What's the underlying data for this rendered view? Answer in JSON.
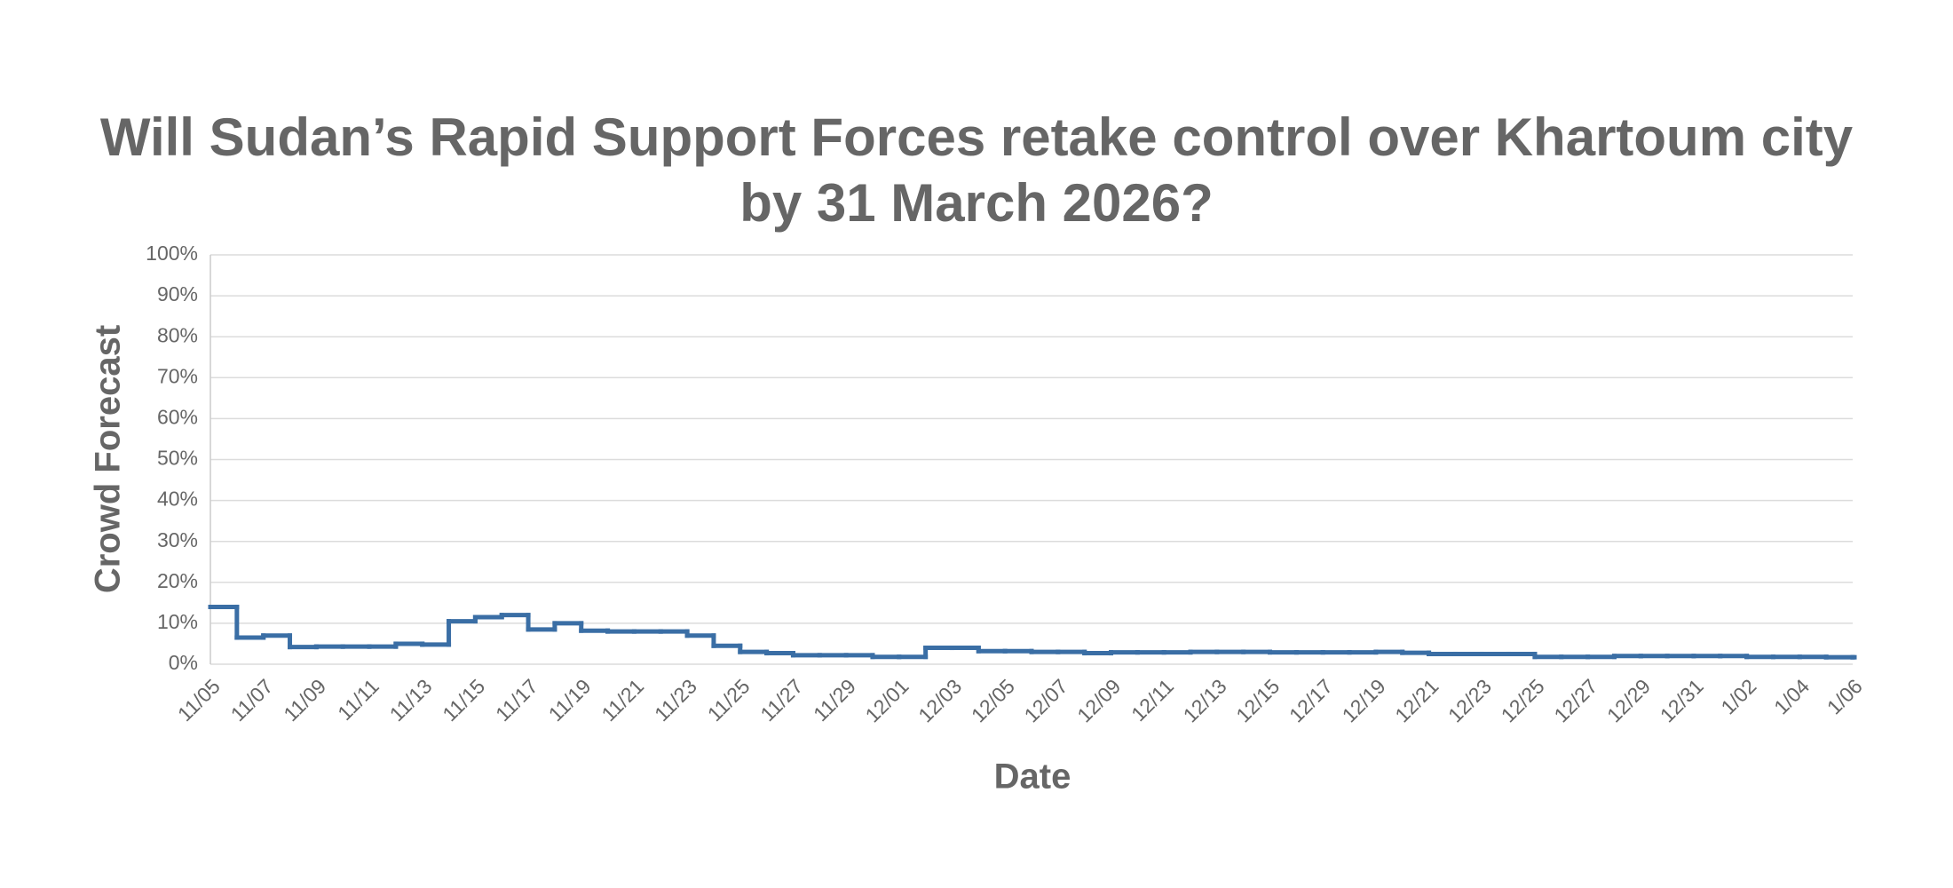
{
  "chart_data": {
    "type": "step-line",
    "title": "Will Sudan’s Rapid Support Forces retake control over Khartoum city by 31 March 2026?",
    "xlabel": "Date",
    "ylabel": "Crowd Forecast",
    "x": [
      "11/05",
      "11/06",
      "11/07",
      "11/08",
      "11/09",
      "11/10",
      "11/11",
      "11/12",
      "11/13",
      "11/14",
      "11/15",
      "11/16",
      "11/17",
      "11/18",
      "11/19",
      "11/20",
      "11/21",
      "11/22",
      "11/23",
      "11/24",
      "11/25",
      "11/26",
      "11/27",
      "11/28",
      "11/29",
      "11/30",
      "12/01",
      "12/02",
      "12/03",
      "12/04",
      "12/05",
      "12/06",
      "12/07",
      "12/08",
      "12/09",
      "12/10",
      "12/11",
      "12/12",
      "12/13",
      "12/14",
      "12/15",
      "12/16",
      "12/17",
      "12/18",
      "12/19",
      "12/20",
      "12/21",
      "12/22",
      "12/23",
      "12/24",
      "12/25",
      "12/26",
      "12/27",
      "12/28",
      "12/29",
      "12/30",
      "12/31",
      "1/01",
      "1/02",
      "1/03",
      "1/04",
      "1/05",
      "1/06"
    ],
    "xticks": [
      "11/05",
      "11/07",
      "11/09",
      "11/11",
      "11/13",
      "11/15",
      "11/17",
      "11/19",
      "11/21",
      "11/23",
      "11/25",
      "11/27",
      "11/29",
      "12/01",
      "12/03",
      "12/05",
      "12/07",
      "12/09",
      "12/11",
      "12/13",
      "12/15",
      "12/17",
      "12/19",
      "12/21",
      "12/23",
      "12/25",
      "12/27",
      "12/29",
      "12/31",
      "1/02",
      "1/04",
      "1/06"
    ],
    "series": [
      {
        "name": "Crowd Forecast",
        "color": "#3a6ea5",
        "values": [
          14,
          6.5,
          7,
          4.2,
          4.3,
          4.3,
          4.3,
          5,
          4.8,
          10.5,
          11.5,
          12,
          8.5,
          10,
          8.2,
          8,
          8,
          8,
          7,
          4.5,
          3,
          2.7,
          2.2,
          2.2,
          2.2,
          1.8,
          1.8,
          4,
          4,
          3.2,
          3.2,
          3,
          3,
          2.7,
          2.9,
          2.9,
          2.9,
          3,
          3,
          3,
          2.9,
          2.9,
          2.9,
          2.9,
          3,
          2.8,
          2.5,
          2.5,
          2.5,
          2.5,
          1.8,
          1.8,
          1.8,
          2,
          2,
          2,
          2,
          2,
          1.8,
          1.8,
          1.8,
          1.7,
          1.7
        ]
      }
    ],
    "ylim": [
      0,
      100
    ],
    "yticks": [
      {
        "value": 0,
        "label": "0%"
      },
      {
        "value": 10,
        "label": "10%"
      },
      {
        "value": 20,
        "label": "20%"
      },
      {
        "value": 30,
        "label": "30%"
      },
      {
        "value": 40,
        "label": "40%"
      },
      {
        "value": 50,
        "label": "50%"
      },
      {
        "value": 60,
        "label": "60%"
      },
      {
        "value": 70,
        "label": "70%"
      },
      {
        "value": 80,
        "label": "80%"
      },
      {
        "value": 90,
        "label": "90%"
      },
      {
        "value": 100,
        "label": "100%"
      }
    ],
    "grid": true
  }
}
